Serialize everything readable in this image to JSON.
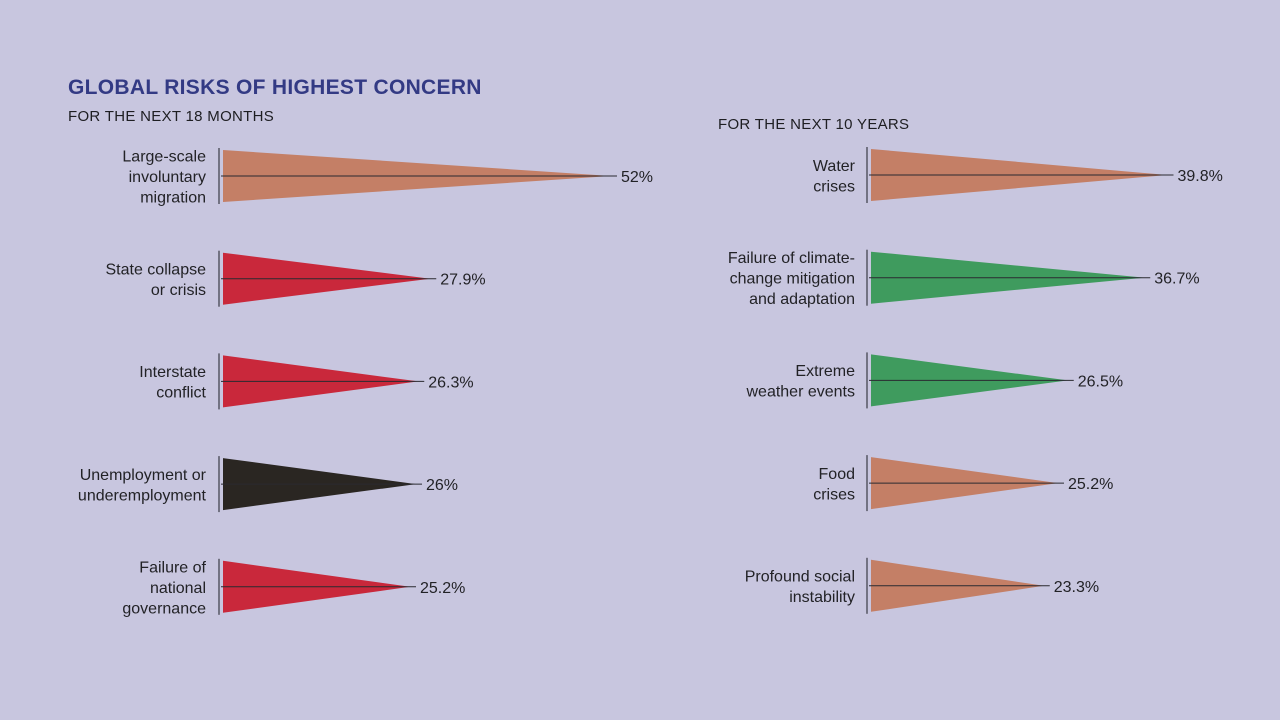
{
  "title": "GLOBAL RISKS OF HIGHEST CONCERN",
  "colors": {
    "background": "#c8c6df",
    "title": "#333a84",
    "orange": "#c47f66",
    "red": "#c9283b",
    "black": "#2a2622",
    "green": "#3f9b5e"
  },
  "chart_data": [
    {
      "type": "bar",
      "subtitle": "FOR THE NEXT 18 MONTHS",
      "categories": [
        [
          "Large-scale",
          "involuntary",
          "migration"
        ],
        [
          "State collapse",
          "or crisis"
        ],
        [
          "Interstate",
          "conflict"
        ],
        [
          "Unemployment or",
          "underemployment"
        ],
        [
          "Failure of",
          "national",
          "governance"
        ]
      ],
      "values": [
        52,
        27.9,
        26.3,
        26,
        25.2
      ],
      "value_labels": [
        "52%",
        "27.9%",
        "26.3%",
        "26%",
        "25.2%"
      ],
      "colors": [
        "#c47f66",
        "#c9283b",
        "#c9283b",
        "#2a2622",
        "#c9283b"
      ],
      "unit": "%"
    },
    {
      "type": "bar",
      "subtitle": "FOR THE NEXT 10 YEARS",
      "categories": [
        [
          "Water",
          "crises"
        ],
        [
          "Failure of climate-",
          "change mitigation",
          "and adaptation"
        ],
        [
          "Extreme",
          "weather events"
        ],
        [
          "Food",
          "crises"
        ],
        [
          "Profound social",
          "instability"
        ]
      ],
      "values": [
        39.8,
        36.7,
        26.5,
        25.2,
        23.3
      ],
      "value_labels": [
        "39.8%",
        "36.7%",
        "26.5%",
        "25.2%",
        "23.3%"
      ],
      "colors": [
        "#c47f66",
        "#3f9b5e",
        "#3f9b5e",
        "#c47f66",
        "#c47f66"
      ],
      "unit": "%"
    }
  ]
}
